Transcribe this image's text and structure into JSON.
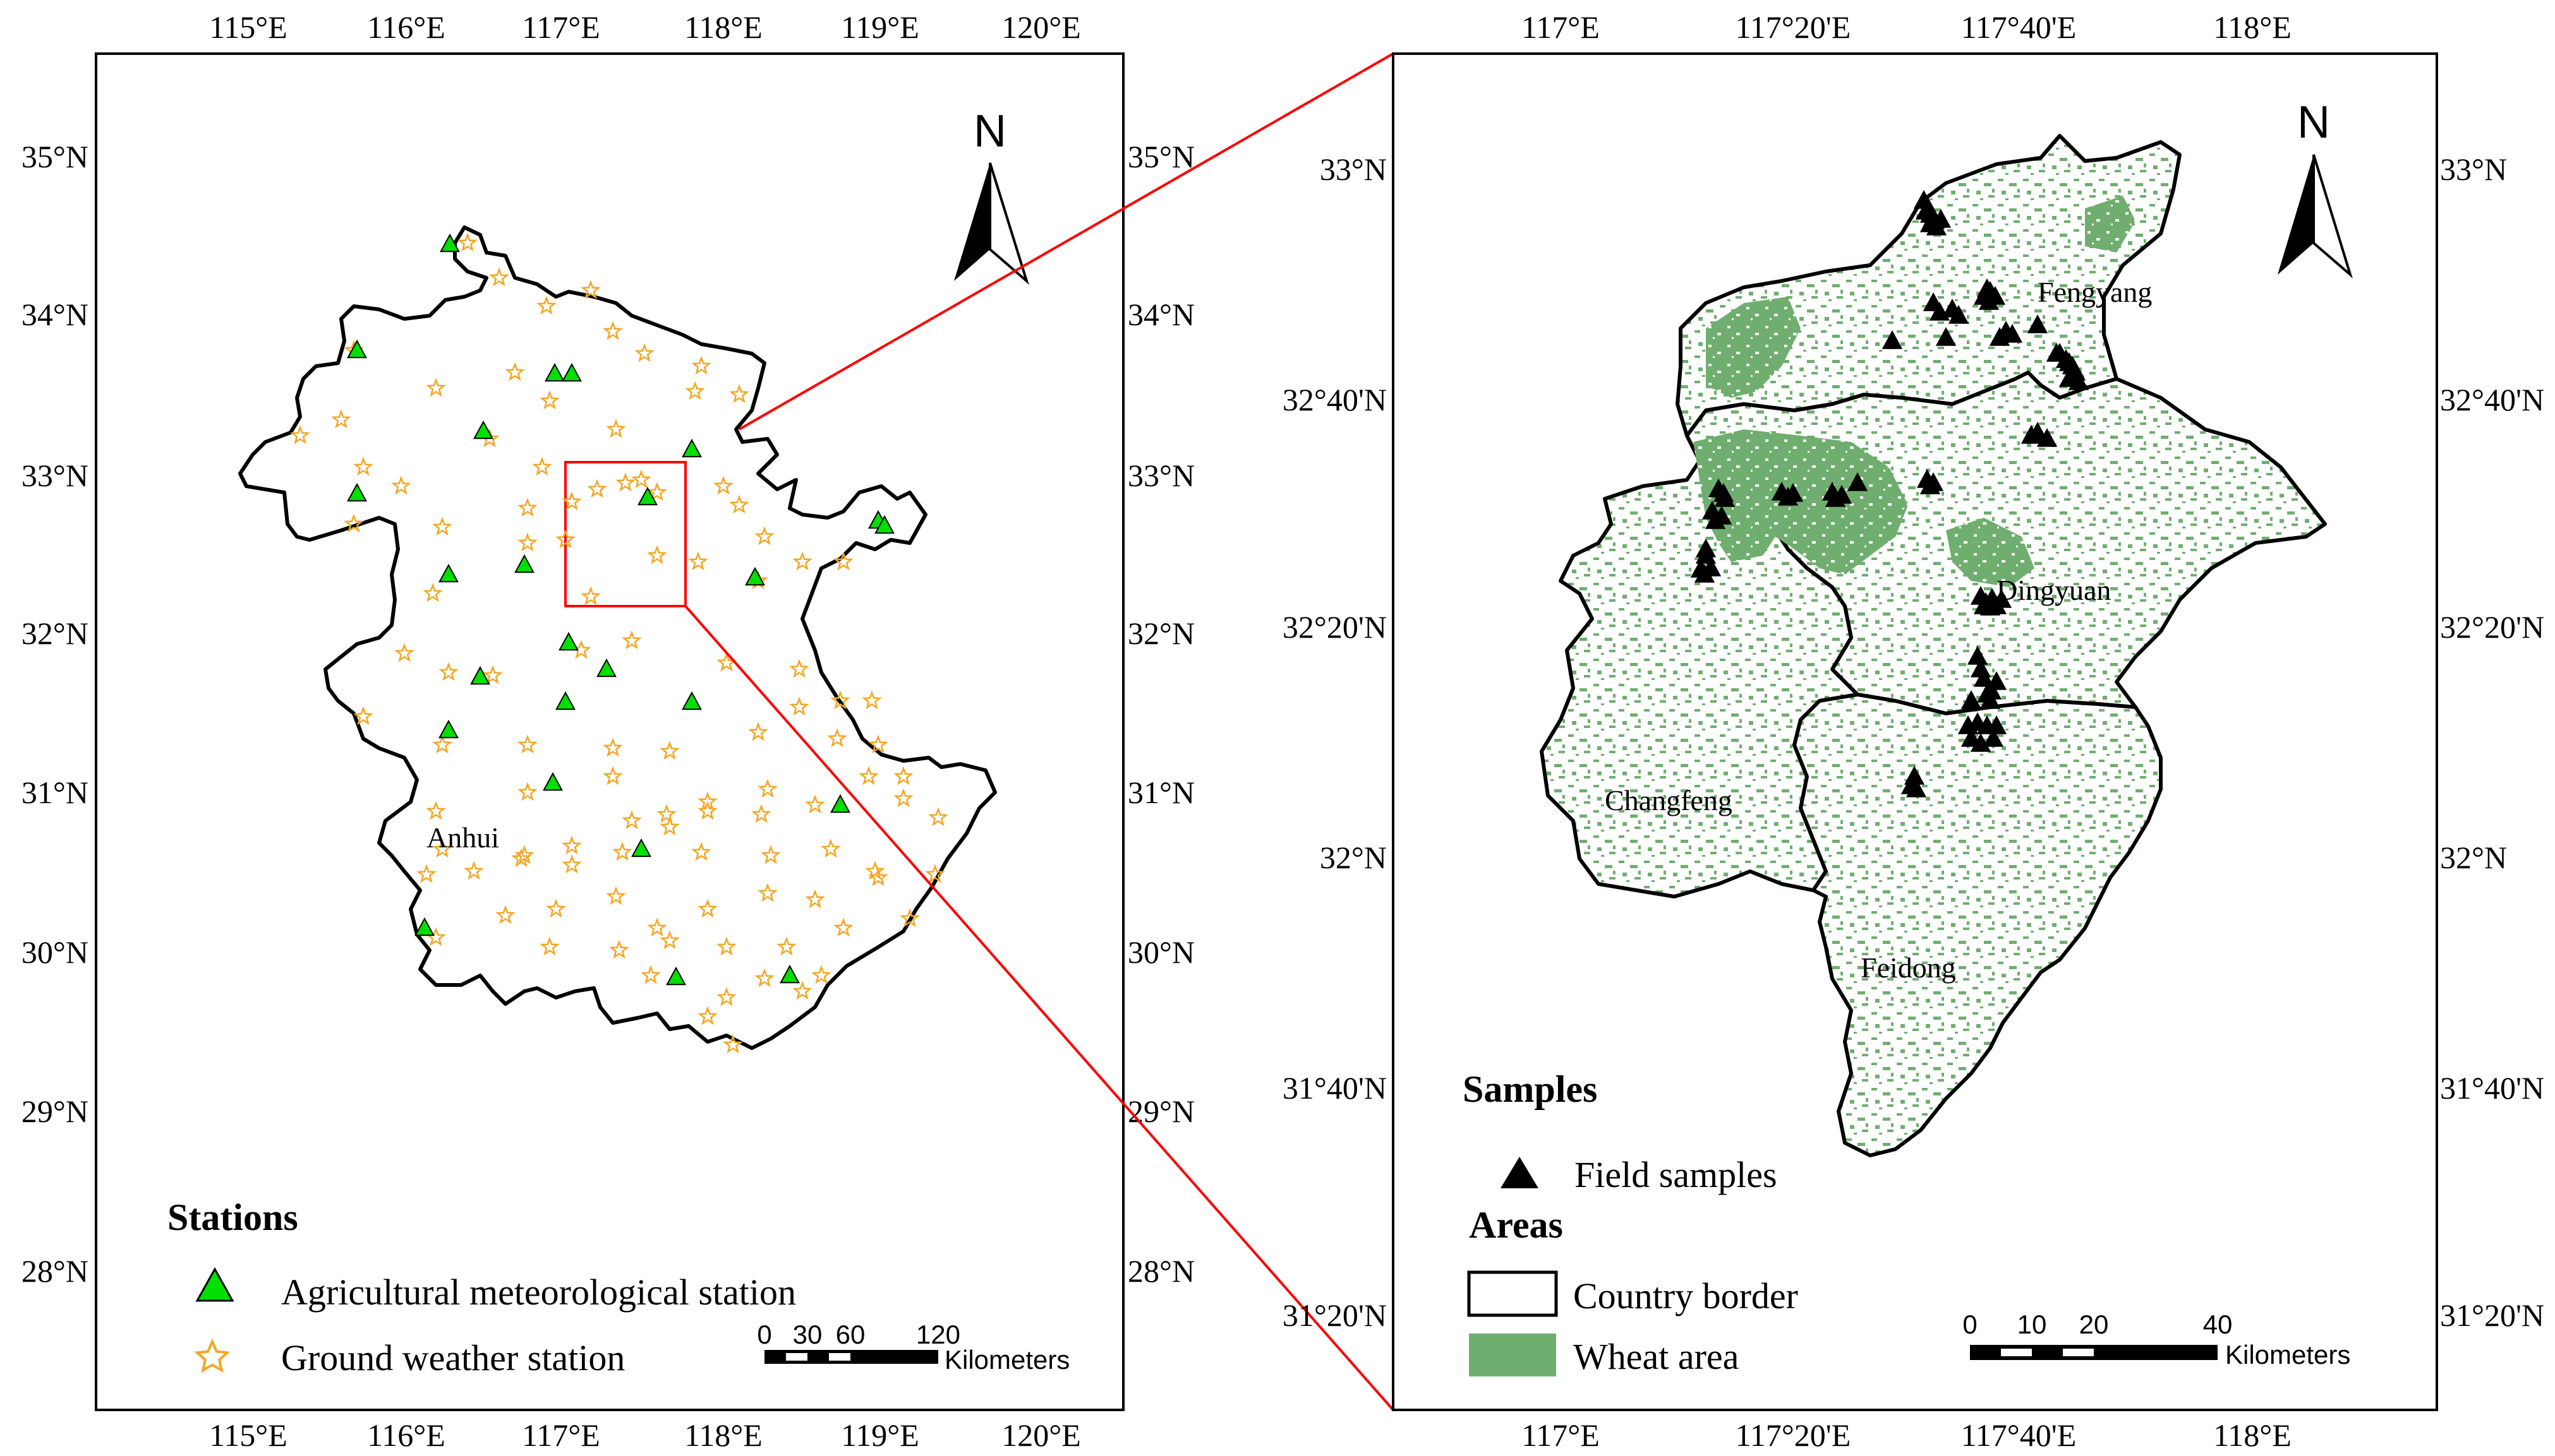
{
  "colors": {
    "frame": "#000000",
    "zoom_box": "#ff0000",
    "agro_station": "#00e000",
    "weather_station": "#f5a623",
    "wheat_area": "#6fae6f",
    "field_sample": "#000000"
  },
  "left_map": {
    "top_ticks": [
      "115°E",
      "116°E",
      "117°E",
      "118°E",
      "119°E",
      "120°E"
    ],
    "bottom_ticks": [
      "115°E",
      "116°E",
      "117°E",
      "118°E",
      "119°E",
      "120°E"
    ],
    "left_ticks": [
      "35°N",
      "34°N",
      "33°N",
      "32°N",
      "31°N",
      "30°N",
      "29°N",
      "28°N"
    ],
    "right_ticks": [
      "35°N",
      "34°N",
      "33°N",
      "32°N",
      "31°N",
      "30°N",
      "29°N",
      "28°N"
    ],
    "north_label": "N",
    "province_label": "Anhui",
    "legend": {
      "title": "Stations",
      "agro_label": "Agricultural meteorological station",
      "weather_label": "Ground weather station"
    },
    "scale": {
      "ticks": [
        "0",
        "30",
        "60",
        "120"
      ],
      "unit": "Kilometers"
    }
  },
  "right_map": {
    "top_ticks": [
      "117°E",
      "117°20'E",
      "117°40'E",
      "118°E"
    ],
    "bottom_ticks": [
      "117°E",
      "117°20'E",
      "117°40'E",
      "118°E"
    ],
    "left_ticks": [
      "33°N",
      "32°40'N",
      "32°20'N",
      "32°N",
      "31°40'N",
      "31°20'N"
    ],
    "right_ticks": [
      "33°N",
      "32°40'N",
      "32°20'N",
      "32°N",
      "31°40'N",
      "31°20'N"
    ],
    "north_label": "N",
    "counties": [
      "Fengyang",
      "Dingyuan",
      "Changfeng",
      "Feidong"
    ],
    "legend": {
      "samples_title": "Samples",
      "samples_label": "Field samples",
      "areas_title": "Areas",
      "border_label": "Country  border",
      "wheat_label": "Wheat area"
    },
    "scale": {
      "ticks": [
        "0",
        "10",
        "20",
        "40"
      ],
      "unit": "Kilometers"
    }
  }
}
